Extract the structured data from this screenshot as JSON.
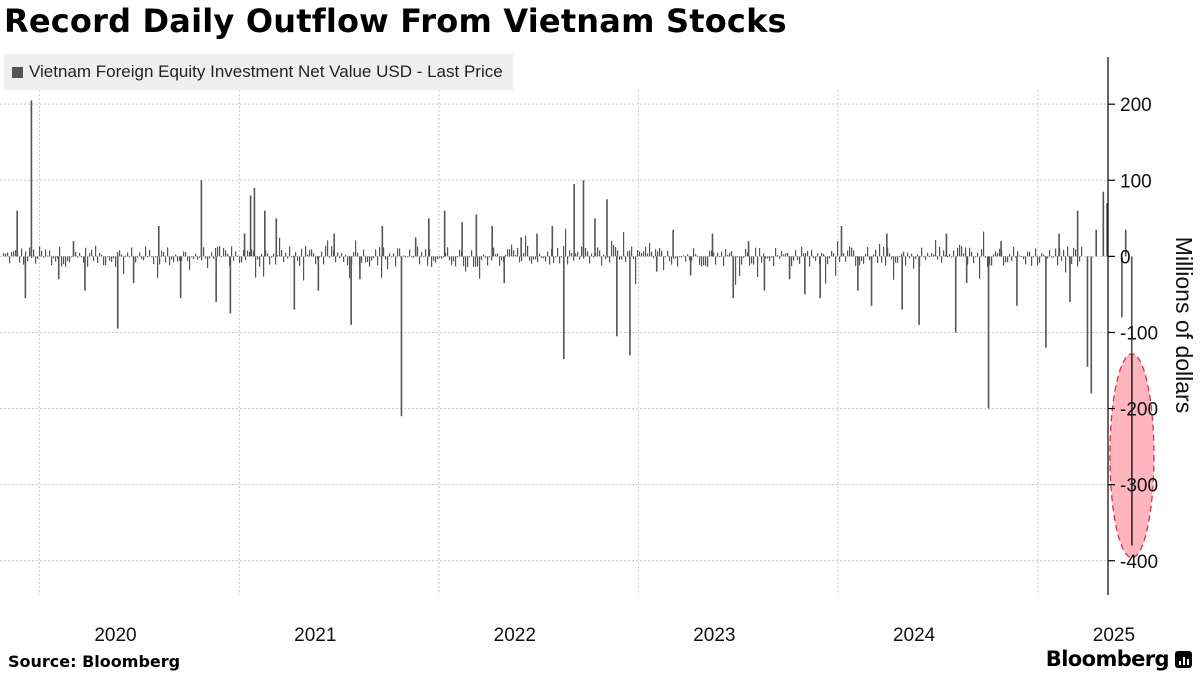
{
  "header": {
    "title": "Record Daily Outflow From Vietnam Stocks"
  },
  "footer": {
    "source": "Source: Bloomberg",
    "brand": "Bloomberg"
  },
  "colors": {
    "bar": "#555555",
    "highlight": "#ff5a6e",
    "grid": "#c8c8c8"
  },
  "chart_data": {
    "type": "bar",
    "legend": {
      "entries": [
        "Vietnam Foreign Equity Investment Net Value USD - Last Price"
      ],
      "placement": "top-left"
    },
    "ylabel": "Millions of dollars",
    "y_axis_position": "right",
    "ylim": [
      -445,
      262
    ],
    "yticks": [
      200,
      100,
      0,
      -100,
      -200,
      -300,
      -400
    ],
    "ytick_labels": [
      "200",
      "100",
      "0",
      "-100",
      "-200",
      "-300",
      "-400"
    ],
    "xlim": [
      "2019-11-01",
      "2025-04-16"
    ],
    "xticks": [
      "2020",
      "2021",
      "2022",
      "2023",
      "2024",
      "2025"
    ],
    "grid": true,
    "series": [
      {
        "values_note": "",
        "points": [
          [
            "2019-11-20",
            60
          ],
          [
            "2019-12-05",
            -55
          ],
          [
            "2019-12-16",
            205
          ],
          [
            "2020-02-04",
            -30
          ],
          [
            "2020-03-02",
            20
          ],
          [
            "2020-03-23",
            -45
          ],
          [
            "2020-05-22",
            -95
          ],
          [
            "2020-06-20",
            -35
          ],
          [
            "2020-08-05",
            40
          ],
          [
            "2020-09-14",
            -55
          ],
          [
            "2020-10-22",
            100
          ],
          [
            "2020-11-18",
            -60
          ],
          [
            "2020-12-14",
            -75
          ],
          [
            "2021-01-09",
            30
          ],
          [
            "2021-01-20",
            80
          ],
          [
            "2021-01-27",
            90
          ],
          [
            "2021-02-15",
            60
          ],
          [
            "2021-03-08",
            50
          ],
          [
            "2021-04-10",
            -70
          ],
          [
            "2021-05-24",
            -45
          ],
          [
            "2021-06-22",
            30
          ],
          [
            "2021-07-23",
            -90
          ],
          [
            "2021-08-08",
            -30
          ],
          [
            "2021-09-18",
            40
          ],
          [
            "2021-10-23",
            -210
          ],
          [
            "2021-11-18",
            25
          ],
          [
            "2021-12-12",
            50
          ],
          [
            "2022-01-10",
            60
          ],
          [
            "2022-02-11",
            45
          ],
          [
            "2022-03-09",
            55
          ],
          [
            "2022-04-07",
            40
          ],
          [
            "2022-04-29",
            -35
          ],
          [
            "2022-05-30",
            25
          ],
          [
            "2022-06-28",
            30
          ],
          [
            "2022-07-26",
            40
          ],
          [
            "2022-08-16",
            -135
          ],
          [
            "2022-09-04",
            95
          ],
          [
            "2022-09-21",
            100
          ],
          [
            "2022-10-12",
            50
          ],
          [
            "2022-11-03",
            75
          ],
          [
            "2022-11-21",
            -105
          ],
          [
            "2022-12-15",
            -130
          ],
          [
            "2023-02-02",
            -20
          ],
          [
            "2023-03-04",
            35
          ],
          [
            "2023-04-05",
            -25
          ],
          [
            "2023-05-15",
            30
          ],
          [
            "2023-06-22",
            -55
          ],
          [
            "2023-07-20",
            20
          ],
          [
            "2023-08-18",
            -45
          ],
          [
            "2023-10-03",
            -30
          ],
          [
            "2023-10-31",
            -50
          ],
          [
            "2023-11-28",
            -55
          ],
          [
            "2024-01-06",
            40
          ],
          [
            "2024-02-05",
            -45
          ],
          [
            "2024-03-01",
            -65
          ],
          [
            "2024-03-29",
            30
          ],
          [
            "2024-04-26",
            -70
          ],
          [
            "2024-05-27",
            -90
          ],
          [
            "2024-07-16",
            30
          ],
          [
            "2024-08-02",
            -100
          ],
          [
            "2024-08-22",
            -35
          ],
          [
            "2024-10-01",
            -200
          ],
          [
            "2024-10-24",
            20
          ],
          [
            "2024-11-22",
            -65
          ],
          [
            "2025-01-14",
            -120
          ],
          [
            "2025-02-07",
            30
          ],
          [
            "2025-02-27",
            -60
          ],
          [
            "2025-03-13",
            60
          ],
          [
            "2025-03-31",
            -145
          ],
          [
            "2025-04-07",
            -180
          ],
          [
            "2025-04-16",
            35
          ],
          [
            "2025-04-29",
            85
          ],
          [
            "2025-05-06",
            70
          ],
          [
            "2025-06-02",
            -80
          ],
          [
            "2025-06-09",
            35
          ],
          [
            "2025-06-20",
            -380
          ]
        ]
      }
    ],
    "annotation": {
      "type": "ellipse-highlight",
      "date": "2025-06-20",
      "value": -380,
      "label": ""
    }
  }
}
